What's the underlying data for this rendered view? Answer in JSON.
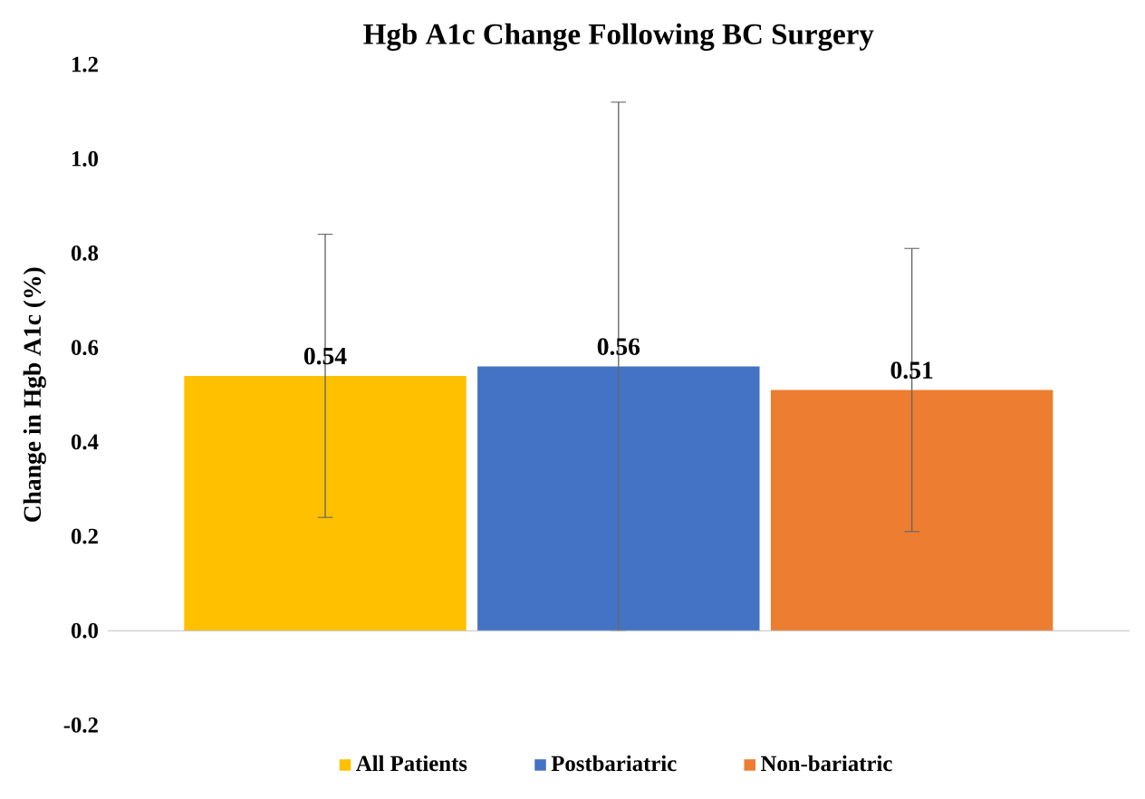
{
  "chart_data": {
    "type": "bar",
    "title": "Hgb A1c Change Following BC Surgery",
    "ylabel": "Change in Hgb A1c (%)",
    "categories": [
      null
    ],
    "series": [
      {
        "name": "All Patients",
        "color": "#ffc000",
        "values": [
          0.54
        ],
        "errors": [
          0.3
        ]
      },
      {
        "name": "Postbariatric",
        "color": "#4472c4",
        "values": [
          0.56
        ],
        "errors": [
          0.56
        ]
      },
      {
        "name": "Non-bariatric",
        "color": "#ed7d31",
        "values": [
          0.51
        ],
        "errors": [
          0.3
        ]
      }
    ],
    "ylim": [
      -0.2,
      1.2
    ],
    "yticks": [
      -0.2,
      {
        "value": 0,
        "label": "0.0"
      },
      0.2,
      0.4,
      0.6,
      0.8,
      {
        "value": 1,
        "label": "1.0"
      },
      1.2
    ],
    "data_labels": true,
    "legend": "bottom"
  }
}
